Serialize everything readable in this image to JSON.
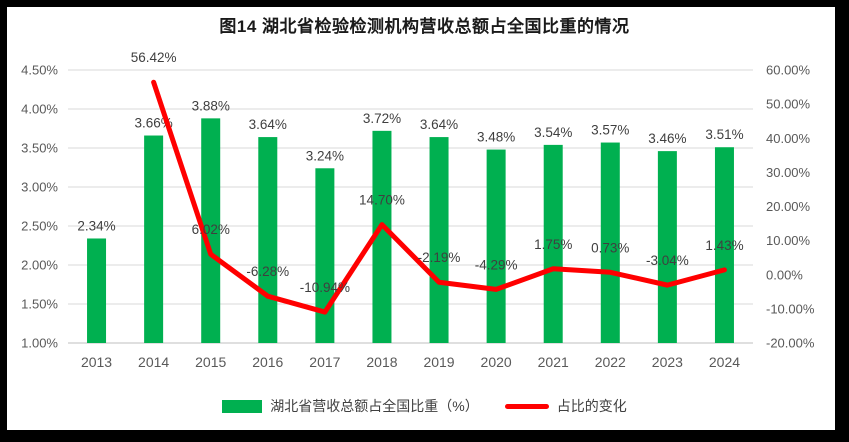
{
  "chart_data": {
    "type": "combo",
    "title": "图14 湖北省检验检测机构营收总额占全国比重的情况",
    "categories": [
      "2013",
      "2014",
      "2015",
      "2016",
      "2017",
      "2018",
      "2019",
      "2020",
      "2021",
      "2022",
      "2023",
      "2024"
    ],
    "series": [
      {
        "name": "湖北省营收总额占全国比重（%）",
        "type": "bar",
        "axis": "left",
        "values": [
          2.34,
          3.66,
          3.88,
          3.64,
          3.24,
          3.72,
          3.64,
          3.48,
          3.54,
          3.57,
          3.46,
          3.51
        ]
      },
      {
        "name": "占比的变化",
        "type": "line",
        "axis": "right",
        "values": [
          null,
          56.42,
          6.02,
          -6.28,
          -10.94,
          14.7,
          -2.19,
          -4.29,
          1.75,
          0.73,
          -3.04,
          1.43
        ]
      }
    ],
    "left_axis": {
      "min": 1.0,
      "max": 4.5,
      "step": 0.5,
      "tick_format": "0.00%"
    },
    "right_axis": {
      "min": -20.0,
      "max": 60.0,
      "step": 10.0,
      "tick_format": "0.00%"
    },
    "grid": true,
    "legend_position": "bottom",
    "colors": {
      "bar": "#00B050",
      "line": "#FF0000",
      "grid": "#D9D9D9",
      "axis_line": "#BFBFBF",
      "tick_text": "#595959",
      "label_text": "#3F3F3F"
    }
  }
}
